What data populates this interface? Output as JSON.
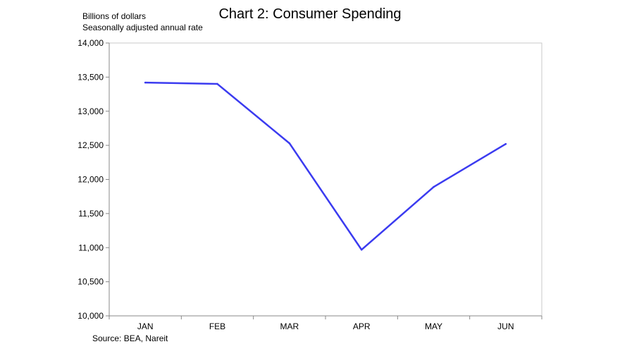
{
  "chart_data": {
    "type": "line",
    "title": "Chart 2: Consumer Spending",
    "unit_note_1": "Billions of dollars",
    "unit_note_2": "Seasonally adjusted annual rate",
    "source": "Source: BEA, Nareit",
    "categories": [
      "JAN",
      "FEB",
      "MAR",
      "APR",
      "MAY",
      "JUN"
    ],
    "series": [
      {
        "values": [
          13420,
          13400,
          12530,
          10970,
          11890,
          12520
        ],
        "color": "#3b3bf0"
      }
    ],
    "ylim": [
      10000,
      14000
    ],
    "yticks": [
      {
        "value": 10000,
        "label": "10,000"
      },
      {
        "value": 10500,
        "label": "10,500"
      },
      {
        "value": 11000,
        "label": "11,000"
      },
      {
        "value": 11500,
        "label": "11,500"
      },
      {
        "value": 12000,
        "label": "12,000"
      },
      {
        "value": 12500,
        "label": "12,500"
      },
      {
        "value": 13000,
        "label": "13,000"
      },
      {
        "value": 13500,
        "label": "13,500"
      },
      {
        "value": 14000,
        "label": "14,000"
      }
    ],
    "grid": false,
    "legend": "none"
  }
}
